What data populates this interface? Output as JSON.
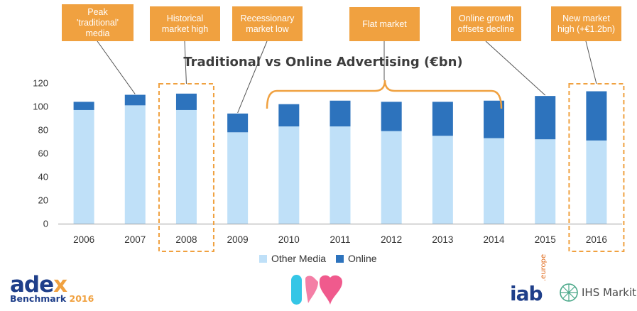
{
  "chart_data": {
    "type": "bar",
    "stacked": true,
    "title": "Traditional vs Online Advertising (€bn)",
    "categories": [
      "2006",
      "2007",
      "2008",
      "2009",
      "2010",
      "2011",
      "2012",
      "2013",
      "2014",
      "2015",
      "2016"
    ],
    "series": [
      {
        "name": "Other Media",
        "values": [
          97,
          101,
          97,
          78,
          83,
          83,
          79,
          75,
          73,
          72,
          71
        ]
      },
      {
        "name": "Online",
        "values": [
          7,
          9,
          14,
          16,
          19,
          22,
          25,
          29,
          32,
          37,
          42
        ]
      }
    ],
    "yticks": [
      0,
      20,
      40,
      60,
      80,
      100,
      120
    ],
    "ylim": [
      0,
      120
    ],
    "legend_position": "bottom",
    "grid": false,
    "colors": {
      "Other Media": "#bfe0f8",
      "Online": "#2d73bd"
    },
    "highlighted_categories": [
      "2008",
      "2016"
    ],
    "flat_market_range": [
      "2010",
      "2014"
    ]
  },
  "callouts": [
    {
      "id": "peak",
      "text": "Peak 'traditional' media",
      "lines": [
        "Peak",
        "'traditional'",
        "media"
      ],
      "target": "2007"
    },
    {
      "id": "historical",
      "text": "Historical market high",
      "lines": [
        "Historical",
        "market high"
      ],
      "target": "2008"
    },
    {
      "id": "recession",
      "text": "Recessionary market low",
      "lines": [
        "Recessionary",
        "market low"
      ],
      "target": "2009"
    },
    {
      "id": "flat",
      "text": "Flat market",
      "lines": [
        "Flat market"
      ],
      "target": "2010-2014"
    },
    {
      "id": "online",
      "text": "Online growth offsets decline",
      "lines": [
        "Online growth",
        "offsets decline"
      ],
      "target": "2015"
    },
    {
      "id": "newhigh",
      "text": "New market high (+€1.2bn)",
      "lines": [
        "New market",
        "high (+€1.2bn)"
      ],
      "target": "2016"
    }
  ],
  "logos": {
    "adex_word_a": "ade",
    "adex_word_b": "x",
    "adex_sub": "Benchmark",
    "adex_year": "2016",
    "iab": "iab",
    "iab_suffix": ".europe",
    "ihs": "IHS Markit"
  },
  "palette": {
    "accent": "#f0a140",
    "online": "#2d73bd",
    "other": "#bfe0f8",
    "brand_blue": "#1f3f8a"
  }
}
